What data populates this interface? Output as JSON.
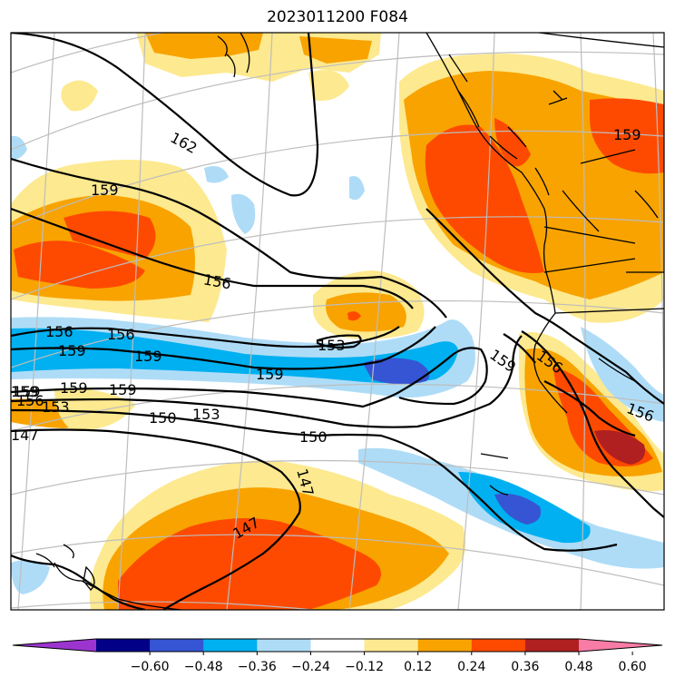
{
  "title": "2023011200 F084",
  "palette": {
    "purple": "#9c35cf",
    "navy": "#020087",
    "blue": "#3655d4",
    "cyan": "#00b0f0",
    "lightblue": "#aedcf7",
    "white": "#ffffff",
    "yellow": "#fde98f",
    "orange": "#f8a300",
    "redorange": "#fe4a00",
    "darkred": "#b02020",
    "pink": "#f97ca7"
  },
  "colorbar": {
    "ticks": [
      "−0.60",
      "−0.48",
      "−0.36",
      "−0.24",
      "−0.12",
      "0.12",
      "0.24",
      "0.36",
      "0.48",
      "0.60"
    ],
    "bins": [
      "purple",
      "navy",
      "blue",
      "cyan",
      "lightblue",
      "white",
      "yellow",
      "orange",
      "redorange",
      "darkred",
      "pink"
    ]
  },
  "contour_labels": [
    "162",
    "159",
    "159",
    "156",
    "156",
    "156",
    "159",
    "159",
    "153",
    "159",
    "159",
    "159",
    "159",
    "156",
    "153",
    "150",
    "153",
    "150",
    "147",
    "147",
    "147",
    "159",
    "156",
    "156",
    "159"
  ]
}
